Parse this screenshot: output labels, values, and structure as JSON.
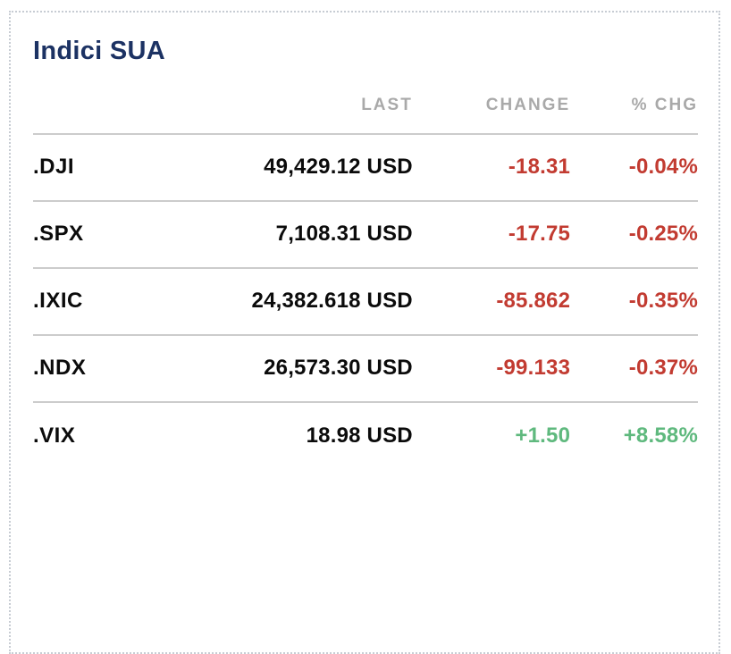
{
  "card": {
    "title": "Indici SUA",
    "columns": [
      "LAST",
      "CHANGE",
      "% CHG"
    ],
    "rows": [
      {
        "symbol": ".DJI",
        "last": "49,429.12 USD",
        "change": "-18.31",
        "pct": "-0.04%",
        "direction": "down"
      },
      {
        "symbol": ".SPX",
        "last": "7,108.31 USD",
        "change": "-17.75",
        "pct": "-0.25%",
        "direction": "down"
      },
      {
        "symbol": ".IXIC",
        "last": "24,382.618 USD",
        "change": "-85.862",
        "pct": "-0.35%",
        "direction": "down"
      },
      {
        "symbol": ".NDX",
        "last": "26,573.30 USD",
        "change": "-99.133",
        "pct": "-0.37%",
        "direction": "down"
      },
      {
        "symbol": ".VIX",
        "last": "18.98 USD",
        "change": "+1.50",
        "pct": "+8.58%",
        "direction": "up"
      }
    ],
    "colors": {
      "title": "#1c3263",
      "header_text": "#a9a9a9",
      "negative": "#c23b31",
      "positive": "#5fb97e",
      "separator": "#cccccc",
      "dotted_border": "#c7ccd3"
    }
  }
}
